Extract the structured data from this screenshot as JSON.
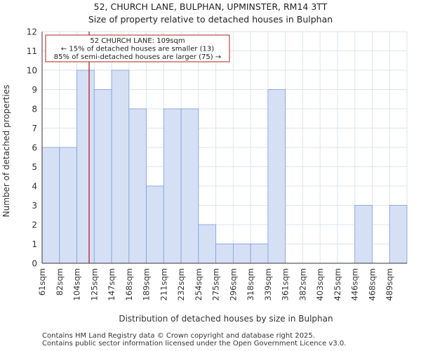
{
  "chart_data": {
    "type": "bar",
    "title": "52, CHURCH LANE, BULPHAN, UPMINSTER, RM14 3TT",
    "subtitle": "Size of property relative to detached houses in Bulphan",
    "xlabel": "Distribution of detached houses by size in Bulphan",
    "ylabel": "Number of detached properties",
    "categories": [
      "61sqm",
      "82sqm",
      "104sqm",
      "125sqm",
      "147sqm",
      "168sqm",
      "189sqm",
      "211sqm",
      "232sqm",
      "254sqm",
      "275sqm",
      "296sqm",
      "318sqm",
      "339sqm",
      "361sqm",
      "382sqm",
      "403sqm",
      "425sqm",
      "446sqm",
      "468sqm",
      "489sqm"
    ],
    "values": [
      6,
      6,
      10,
      9,
      10,
      8,
      4,
      8,
      8,
      2,
      1,
      1,
      1,
      9,
      0,
      0,
      0,
      0,
      3,
      0,
      3
    ],
    "ylim": [
      0,
      12
    ],
    "yticks": [
      0,
      1,
      2,
      3,
      4,
      5,
      6,
      7,
      8,
      9,
      10,
      11,
      12
    ],
    "grid": true,
    "marker": {
      "value_sqm": 109,
      "line_color": "#b22222",
      "annotation": [
        "52 CHURCH LANE: 109sqm",
        "← 15% of detached houses are smaller (13)",
        "85% of semi-detached houses are larger (75) →"
      ]
    },
    "colors": {
      "bar_fill": "#d6e0f5",
      "bar_edge": "#7b9fd8",
      "grid": "#dde3ee"
    }
  },
  "footer": {
    "line1": "Contains HM Land Registry data © Crown copyright and database right 2025.",
    "line2": "Contains public sector information licensed under the Open Government Licence v3.0."
  }
}
